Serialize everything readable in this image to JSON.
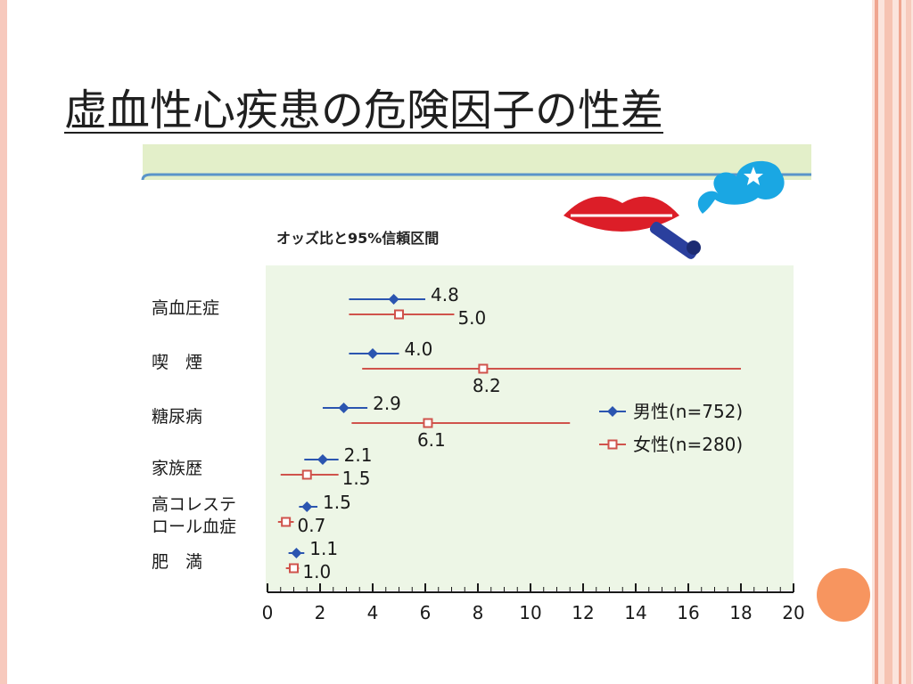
{
  "slide": {
    "title": "虚血性心疾患の危険因子の性差"
  },
  "chart_data": {
    "type": "forest",
    "subtitle": "オッズ比と95%信頼区間",
    "xlim": [
      0,
      20
    ],
    "xticks": [
      0,
      2,
      4,
      6,
      8,
      10,
      12,
      14,
      16,
      18,
      20
    ],
    "categories": [
      {
        "label": [
          "高血圧症"
        ]
      },
      {
        "label": [
          "喫　煙"
        ]
      },
      {
        "label": [
          "糖尿病"
        ]
      },
      {
        "label": [
          "家族歴"
        ]
      },
      {
        "label": [
          "高コレステ",
          "ロール血症"
        ]
      },
      {
        "label": [
          "肥　満"
        ]
      }
    ],
    "series": [
      {
        "name": "男性(n=752)",
        "color": "#2b55b0",
        "marker": "diamond",
        "points": [
          {
            "value": 4.8,
            "value_label": "4.8",
            "ci": [
              3.1,
              6.0
            ]
          },
          {
            "value": 4.0,
            "value_label": "4.0",
            "ci": [
              3.1,
              5.0
            ]
          },
          {
            "value": 2.9,
            "value_label": "2.9",
            "ci": [
              2.1,
              3.8
            ]
          },
          {
            "value": 2.1,
            "value_label": "2.1",
            "ci": [
              1.4,
              2.7
            ]
          },
          {
            "value": 1.5,
            "value_label": "1.5",
            "ci": [
              1.2,
              1.9
            ]
          },
          {
            "value": 1.1,
            "value_label": "1.1",
            "ci": [
              0.8,
              1.4
            ]
          }
        ]
      },
      {
        "name": "女性(n=280)",
        "color": "#d0534c",
        "marker": "square",
        "points": [
          {
            "value": 5.0,
            "value_label": "5.0",
            "ci": [
              3.1,
              7.1
            ]
          },
          {
            "value": 8.2,
            "value_label": "8.2",
            "ci": [
              3.6,
              18.0
            ]
          },
          {
            "value": 6.1,
            "value_label": "6.1",
            "ci": [
              3.2,
              11.5
            ]
          },
          {
            "value": 1.5,
            "value_label": "1.5",
            "ci": [
              0.5,
              2.7
            ]
          },
          {
            "value": 0.7,
            "value_label": "0.7",
            "ci": [
              0.4,
              1.0
            ]
          },
          {
            "value": 1.0,
            "value_label": "1.0",
            "ci": [
              0.7,
              1.2
            ]
          }
        ]
      }
    ],
    "legend_position": "right"
  }
}
